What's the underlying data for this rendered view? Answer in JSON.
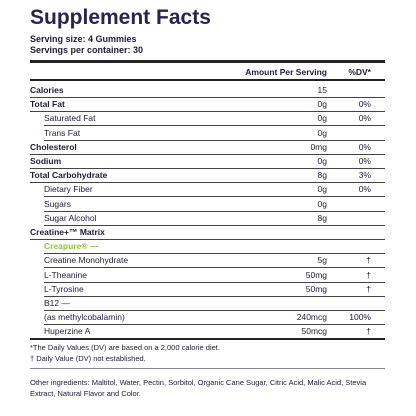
{
  "header": {
    "title": "Supplement Facts",
    "serving_size": "Serving size: 4 Gummies",
    "servings_per_container": "Servings per container: 30"
  },
  "table": {
    "columns": {
      "amount": "Amount Per Serving",
      "dv": "%DV*"
    },
    "rows": [
      {
        "name": "Calories",
        "amount": "15"
      },
      {
        "name": "Total Fat",
        "amount": "0g",
        "dv": "0%"
      },
      {
        "name": "Saturated Fat",
        "amount": "0g",
        "dv": "0%"
      },
      {
        "name": "Trans Fat",
        "amount": "0g"
      },
      {
        "name": "Cholesterol",
        "amount": "0mg",
        "dv": "0%"
      },
      {
        "name": "Sodium",
        "amount": "0g",
        "dv": "0%"
      },
      {
        "name": "Total Carbohydrate",
        "amount": "8g",
        "dv": "3%"
      },
      {
        "name": "Dietary Fiber",
        "amount": "0g",
        "dv": "0%"
      },
      {
        "name": "Sugars",
        "amount": "0g"
      },
      {
        "name": "Sugar Alcohol",
        "amount": "8g"
      },
      {
        "name": "Creatine+™ Matrix"
      },
      {
        "name": "Creapure® —"
      },
      {
        "name": "Creatine Monohydrate",
        "amount": "5g",
        "dv": "†"
      },
      {
        "name": "L-Theanine",
        "amount": "50mg",
        "dv": "†"
      },
      {
        "name": "L-Tyrosine",
        "amount": "50mg",
        "dv": "†"
      },
      {
        "name": "B12 —"
      },
      {
        "name": "(as methylcobalamin)",
        "amount": "240mcg",
        "dv": "100%"
      },
      {
        "name": "Huperzine A",
        "amount": "50mcg",
        "dv": "†"
      }
    ]
  },
  "footnotes": [
    "*The Daily Values (DV) are based on a 2,000 calorie diet.",
    "† Daily Value (DV) not established."
  ],
  "ingredients": "Other ingredients: Maltitol, Water, Pectin, Sorbitol, Organic Cane Sugar, Citric Acid, Malic Acid, Stevia Extract, Natural Flavor and Color."
}
